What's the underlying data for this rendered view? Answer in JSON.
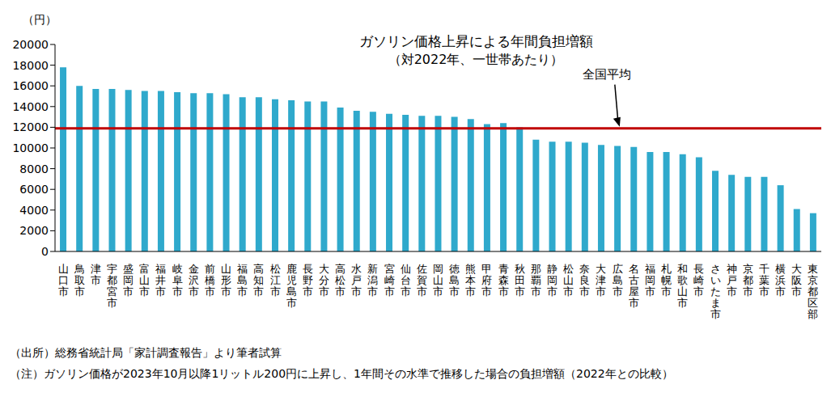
{
  "chart_data": {
    "type": "bar",
    "title": "ガソリン価格上昇による年間負担増額",
    "subtitle": "（対2022年、一世帯あたり）",
    "y_label": "（円）",
    "categories": [
      "山口市",
      "鳥取市",
      "津市",
      "宇都宮市",
      "盛岡市",
      "富山市",
      "福井市",
      "岐阜市",
      "金沢市",
      "前橋市",
      "山形市",
      "福島市",
      "高知市",
      "松江市",
      "鹿児島市",
      "長野市",
      "大分市",
      "高松市",
      "水戸市",
      "新潟市",
      "宮崎市",
      "仙台市",
      "佐賀市",
      "岡山市",
      "徳島市",
      "熊本市",
      "甲府市",
      "青森市",
      "秋田市",
      "那覇市",
      "静岡市",
      "松山市",
      "奈良市",
      "大津市",
      "広島市",
      "名古屋市",
      "福岡市",
      "札幌市",
      "和歌山市",
      "長崎市",
      "さいたま市",
      "神戸市",
      "京都市",
      "千葉市",
      "横浜市",
      "大阪市",
      "東京都区部"
    ],
    "values": [
      17800,
      16000,
      15700,
      15700,
      15600,
      15500,
      15500,
      15400,
      15300,
      15300,
      15200,
      14900,
      14900,
      14700,
      14600,
      14500,
      14500,
      13900,
      13600,
      13500,
      13300,
      13200,
      13100,
      13100,
      13000,
      12800,
      12300,
      12400,
      12000,
      10800,
      10600,
      10600,
      10500,
      10300,
      10200,
      10100,
      9600,
      9600,
      9400,
      9100,
      7800,
      7400,
      7200,
      7200,
      6400,
      4100,
      3700
    ],
    "color": "#2fa9cc",
    "ylim": [
      0,
      20000
    ],
    "yticks": [
      0,
      2000,
      4000,
      6000,
      8000,
      10000,
      12000,
      14000,
      16000,
      18000,
      20000
    ],
    "grid": false,
    "reference_line": {
      "label": "全国平均",
      "value": 11900,
      "color": "#c00000"
    },
    "notes": [
      "（出所）総務省統計局「家計調査報告」より筆者試算",
      "（注）ガソリン価格が2023年10月以降1リットル200円に上昇し、1年間その水準で推移した場合の負担増額（2022年との比較）"
    ]
  }
}
